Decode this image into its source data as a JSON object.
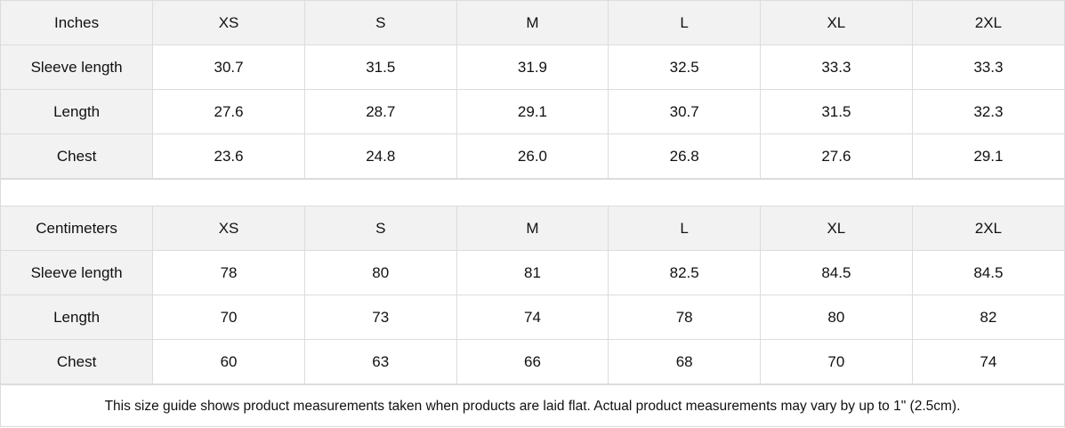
{
  "tables": [
    {
      "unit": "Inches",
      "sizes": [
        "XS",
        "S",
        "M",
        "L",
        "XL",
        "2XL"
      ],
      "rows": [
        {
          "label": "Sleeve length",
          "values": [
            "30.7",
            "31.5",
            "31.9",
            "32.5",
            "33.3",
            "33.3"
          ]
        },
        {
          "label": "Length",
          "values": [
            "27.6",
            "28.7",
            "29.1",
            "30.7",
            "31.5",
            "32.3"
          ]
        },
        {
          "label": "Chest",
          "values": [
            "23.6",
            "24.8",
            "26.0",
            "26.8",
            "27.6",
            "29.1"
          ]
        }
      ]
    },
    {
      "unit": "Centimeters",
      "sizes": [
        "XS",
        "S",
        "M",
        "L",
        "XL",
        "2XL"
      ],
      "rows": [
        {
          "label": "Sleeve length",
          "values": [
            "78",
            "80",
            "81",
            "82.5",
            "84.5",
            "84.5"
          ]
        },
        {
          "label": "Length",
          "values": [
            "70",
            "73",
            "74",
            "78",
            "80",
            "82"
          ]
        },
        {
          "label": "Chest",
          "values": [
            "60",
            "63",
            "66",
            "68",
            "70",
            "74"
          ]
        }
      ]
    }
  ],
  "note": "This size guide shows product measurements taken when products are laid flat.  Actual product measurements may vary by up to 1\" (2.5cm).",
  "colors": {
    "header_bg": "#f2f2f2",
    "border": "#dcdcdc",
    "text": "#111111"
  }
}
